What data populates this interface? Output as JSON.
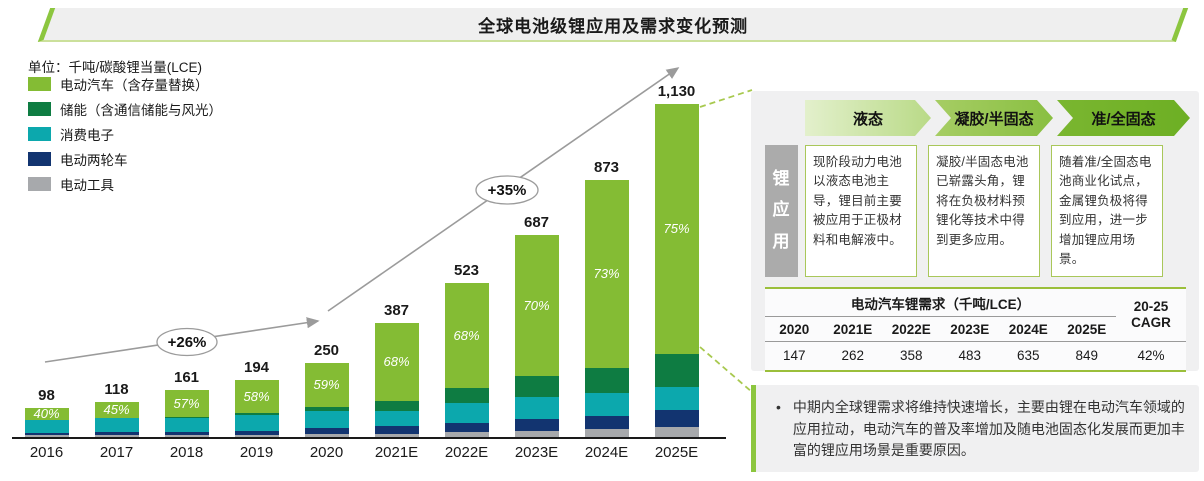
{
  "title": "全球电池级锂应用及需求变化预测",
  "unit_label": "单位：千吨/碳酸锂当量(LCE)",
  "colors": {
    "ev_green": "#84BC34",
    "storage_green": "#0E7C42",
    "consumer_teal": "#0CA8AD",
    "two_wheeler_navy": "#123470",
    "tools_gray": "#A7A9AC",
    "accent_green": "#8CC63F",
    "trend_gray": "#9B9B9B",
    "dashed_green": "#A8C94F"
  },
  "legend": [
    {
      "key": "ev",
      "label": "电动汽车（含存量替换）",
      "color": "#84BC34"
    },
    {
      "key": "storage",
      "label": "储能（含通信储能与风光）",
      "color": "#0E7C42"
    },
    {
      "key": "consumer",
      "label": "消费电子",
      "color": "#0CA8AD"
    },
    {
      "key": "two-wheeler",
      "label": "电动两轮车",
      "color": "#123470"
    },
    {
      "key": "power-tools",
      "label": "电动工具",
      "color": "#A7A9AC"
    }
  ],
  "chart_data": {
    "type": "bar",
    "stacked": true,
    "title": "全球电池级锂应用及需求变化预测",
    "unit": "千吨/碳酸锂当量(LCE)",
    "categories": [
      "2016",
      "2017",
      "2018",
      "2019",
      "2020",
      "2021E",
      "2022E",
      "2023E",
      "2024E",
      "2025E"
    ],
    "totals": [
      98,
      118,
      161,
      194,
      250,
      387,
      523,
      687,
      873,
      1130
    ],
    "total_labels": [
      "98",
      "118",
      "161",
      "194",
      "250",
      "387",
      "523",
      "687",
      "873",
      "1,130"
    ],
    "ev_share_labels": [
      "40%",
      "45%",
      "57%",
      "58%",
      "59%",
      "68%",
      "68%",
      "70%",
      "73%",
      "75%"
    ],
    "series": [
      {
        "key": "ev",
        "name": "电动汽车（含存量替换）",
        "color": "#84BC34",
        "share_pct": [
          40,
          45,
          57,
          58,
          59,
          68,
          68,
          70,
          73,
          75
        ]
      },
      {
        "key": "storage",
        "name": "储能（含通信储能与风光）",
        "color": "#0E7C42",
        "share_pct": [
          2,
          2,
          2,
          3,
          6,
          9,
          10,
          10,
          10,
          10
        ]
      },
      {
        "key": "consumer",
        "name": "消费电子",
        "color": "#0CA8AD",
        "share_pct": [
          44,
          40,
          30,
          28,
          23,
          13,
          13,
          11,
          9,
          7
        ]
      },
      {
        "key": "two-wheeler",
        "name": "电动两轮车",
        "color": "#123470",
        "share_pct": [
          8,
          8,
          7,
          7,
          8,
          7,
          6,
          6,
          5,
          5
        ]
      },
      {
        "key": "power-tools",
        "name": "电动工具",
        "color": "#A7A9AC",
        "share_pct": [
          6,
          5,
          4,
          4,
          4,
          3,
          3,
          3,
          3,
          3
        ]
      }
    ],
    "growth_annotations": [
      {
        "label": "+26%",
        "span": "2016-2020"
      },
      {
        "label": "+35%",
        "span": "2020-2025E"
      }
    ],
    "ylim": [
      0,
      1200
    ],
    "grid": false,
    "legend_position": "top-left"
  },
  "panel": {
    "stages": [
      {
        "label": "液态"
      },
      {
        "label": "凝胶/半固态"
      },
      {
        "label": "准/全固态"
      }
    ],
    "side_tab": "锂应用",
    "stage_notes": [
      "现阶段动力电池以液态电池主导，锂目前主要被应用于正极材料和电解液中。",
      "凝胶/半固态电池已崭露头角，锂将在负极材料预锂化等技术中得到更多应用。",
      "随着准/全固态电池商业化试点，金属锂负极将得到应用，进一步增加锂应用场景。"
    ],
    "table": {
      "title": "电动汽车锂需求（千吨/LCE）",
      "cagr_header": "20-25 CAGR",
      "columns": [
        "2020",
        "2021E",
        "2022E",
        "2023E",
        "2024E",
        "2025E"
      ],
      "values": [
        "147",
        "262",
        "358",
        "483",
        "635",
        "849"
      ],
      "cagr_value": "42%"
    },
    "note_bullet": "•",
    "note": "中期内全球锂需求将维持快速增长，主要由锂在电动汽车领域的应用拉动，电动汽车的普及率增加及随电池固态化发展而更加丰富的锂应用场景是重要原因。"
  }
}
